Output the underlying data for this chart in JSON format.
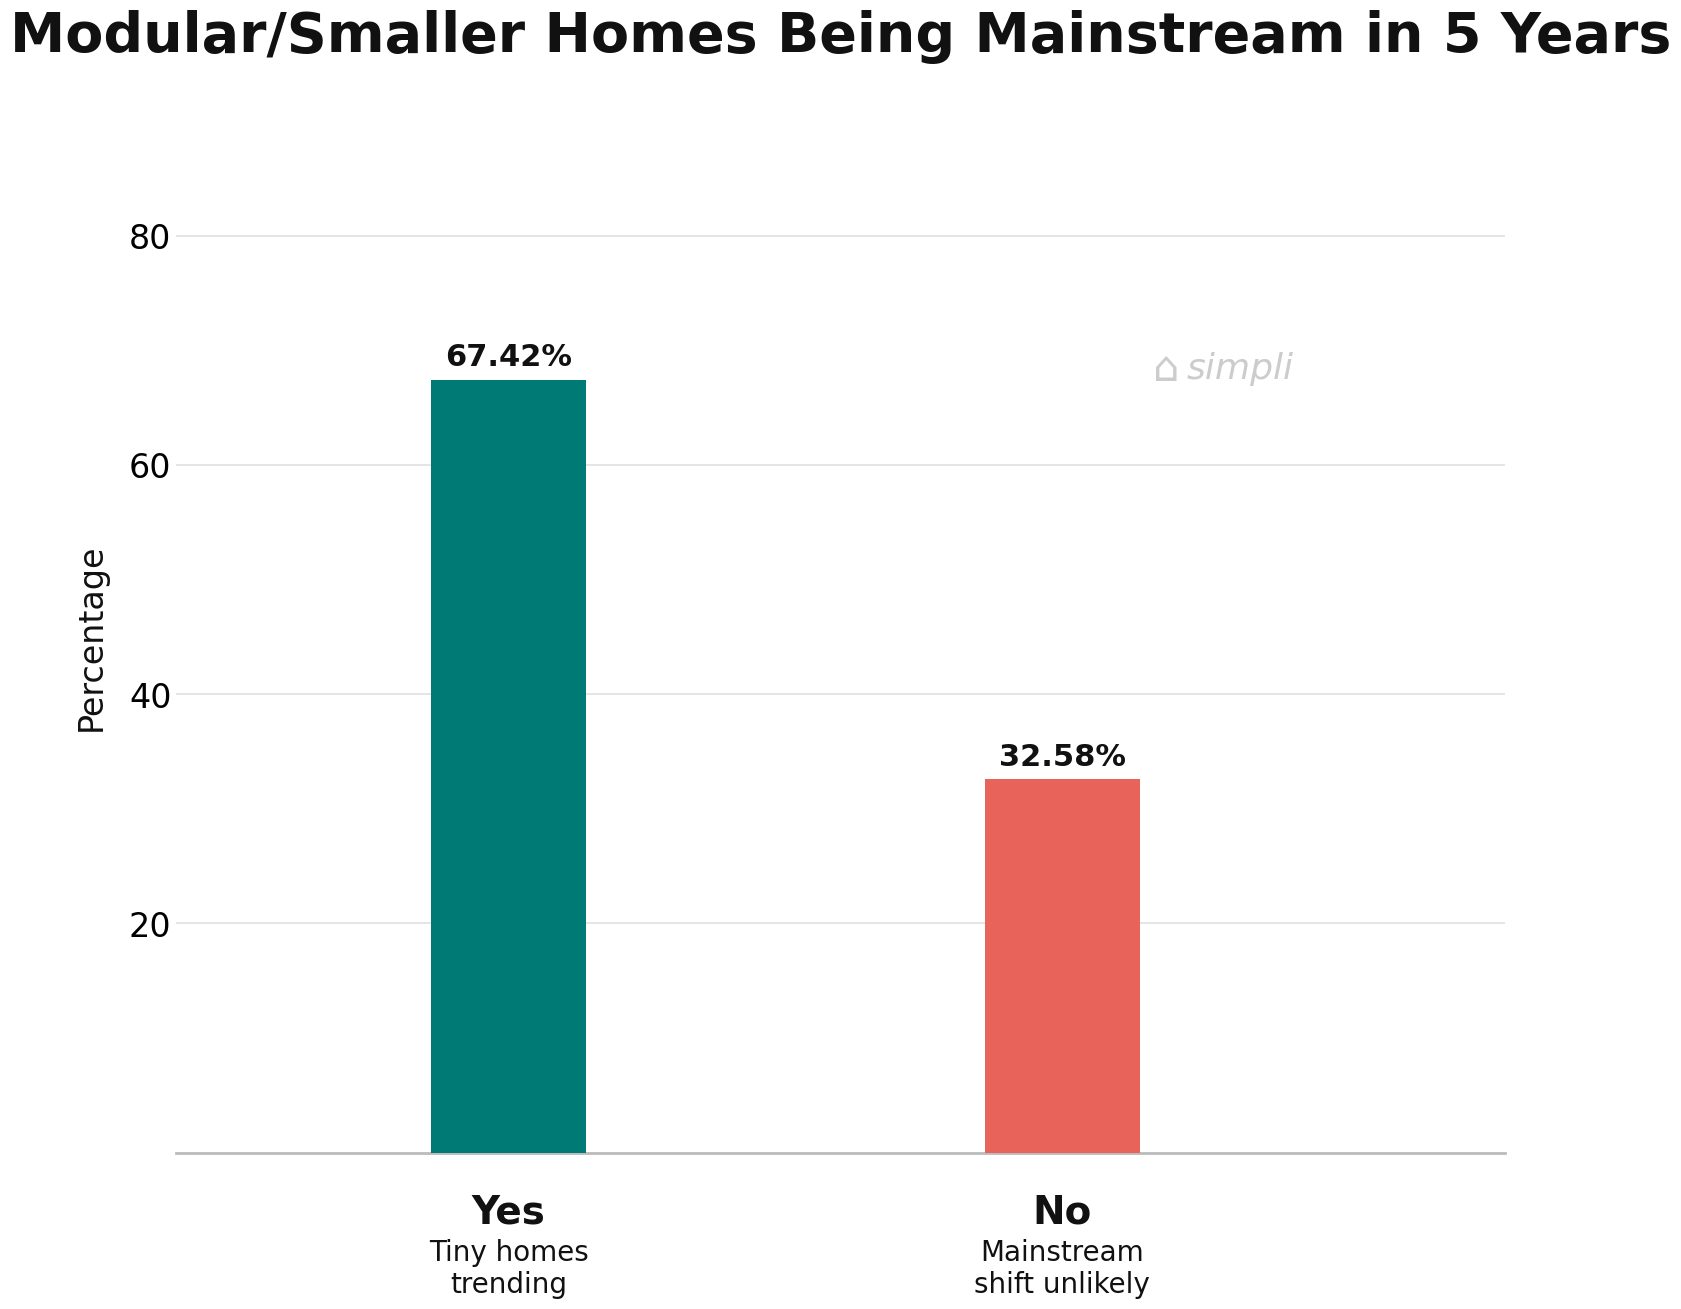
{
  "title": "Modular/Smaller Homes Being Mainstream in 5 Years",
  "categories": [
    "Yes",
    "No"
  ],
  "subtitles": [
    "Tiny homes\ntrending",
    "Mainstream\nshift unlikely"
  ],
  "values": [
    67.42,
    32.58
  ],
  "labels": [
    "67.42%",
    "32.58%"
  ],
  "bar_colors": [
    "#007A74",
    "#E8635A"
  ],
  "ylabel": "Percentage",
  "ylim": [
    0,
    90
  ],
  "yticks": [
    20,
    40,
    60,
    80
  ],
  "background_color": "#FFFFFF",
  "title_fontsize": 40,
  "label_fontsize": 22,
  "tick_fontsize": 24,
  "ylabel_fontsize": 24,
  "cat_fontsize": 28,
  "sub_fontsize": 20,
  "bar_width": 0.28,
  "x_positions": [
    1,
    2
  ],
  "xlim": [
    0.4,
    2.8
  ],
  "watermark_text": "simpli",
  "watermark_color": "#CCCCCC",
  "grid_color": "#E0E0E0",
  "spine_color": "#BBBBBB"
}
